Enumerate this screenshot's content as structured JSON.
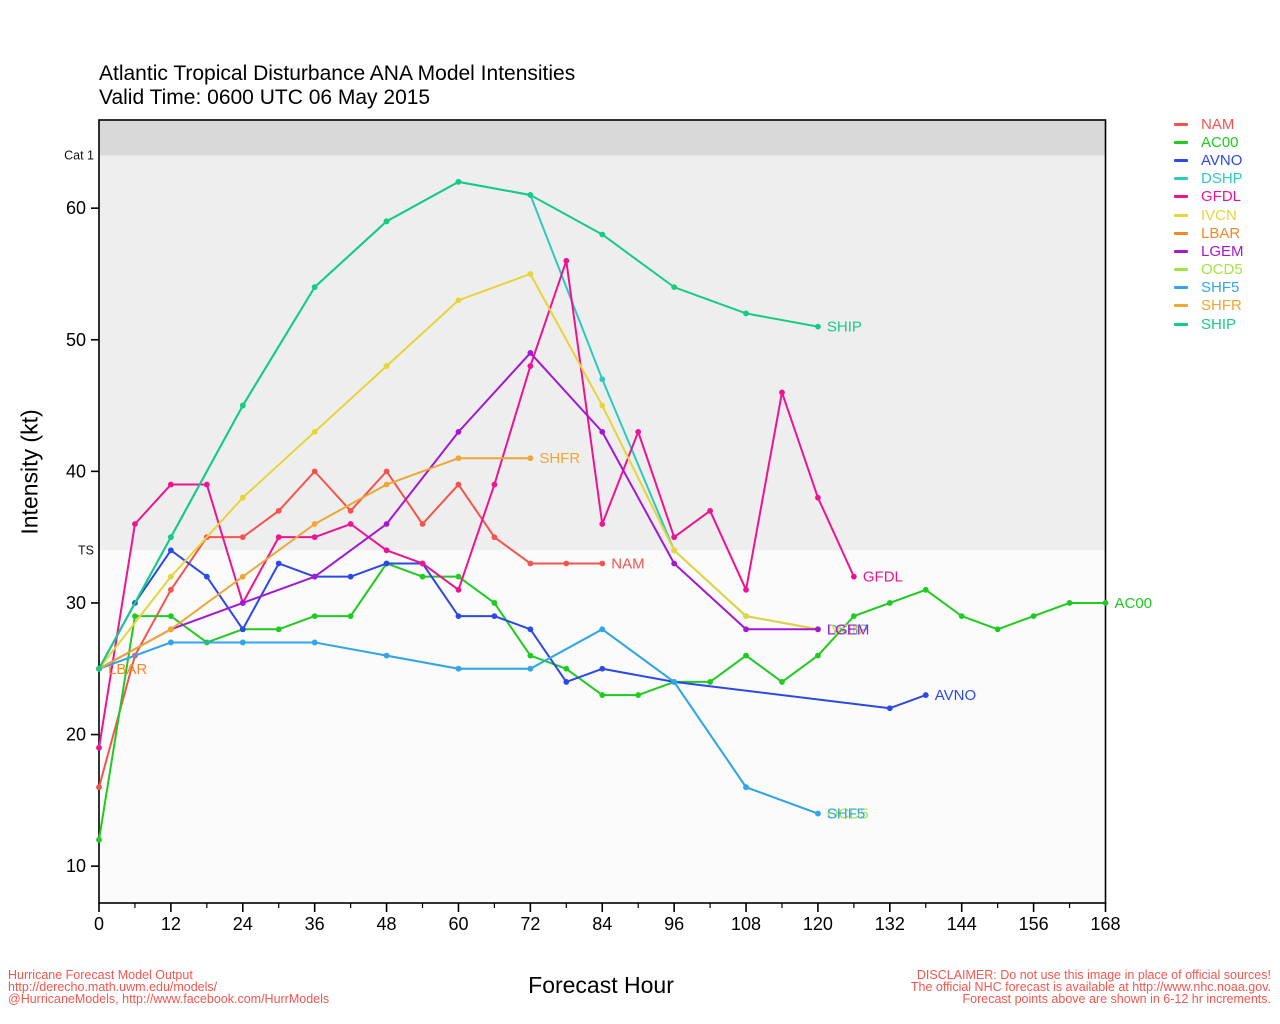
{
  "chart_data": {
    "type": "line",
    "title": "Atlantic Tropical Disturbance ANA Model Intensities",
    "subtitle": "Valid Time: 0600 UTC 06 May 2015",
    "xlabel": "Forecast Hour",
    "ylabel": "Intensity (kt)",
    "xlim": [
      0,
      168
    ],
    "ylim": [
      7.2,
      66.7
    ],
    "x_ticks": [
      0,
      12,
      24,
      36,
      48,
      60,
      72,
      84,
      96,
      108,
      120,
      132,
      144,
      156,
      168
    ],
    "x_minor_step": 6,
    "y_ticks": [
      10,
      20,
      30,
      40,
      50,
      60
    ],
    "grid": false,
    "legend_position": "right-outside",
    "thresholds": [
      {
        "label": "TS",
        "value": 34
      },
      {
        "label": "Cat 1",
        "value": 64
      }
    ],
    "bands": [
      {
        "from": 64,
        "to": 66.7,
        "color": "#d9d9d9"
      },
      {
        "from": 34,
        "to": 64,
        "color": "#eeeeee"
      },
      {
        "from": 7.2,
        "to": 34,
        "color": "#fbfbfb"
      }
    ],
    "series": [
      {
        "name": "NAM",
        "color": "#f4534e",
        "label_at": [
          84,
          33
        ],
        "points": [
          [
            0,
            16
          ],
          [
            6,
            26
          ],
          [
            12,
            31
          ],
          [
            18,
            35
          ],
          [
            24,
            35
          ],
          [
            30,
            37
          ],
          [
            36,
            40
          ],
          [
            42,
            37
          ],
          [
            48,
            40
          ],
          [
            54,
            36
          ],
          [
            60,
            39
          ],
          [
            66,
            35
          ],
          [
            72,
            33
          ],
          [
            78,
            33
          ],
          [
            84,
            33
          ]
        ]
      },
      {
        "name": "AC00",
        "color": "#1ecb1e",
        "label_at": [
          168,
          30
        ],
        "points": [
          [
            0,
            12
          ],
          [
            6,
            29
          ],
          [
            12,
            29
          ],
          [
            18,
            27
          ],
          [
            24,
            28
          ],
          [
            30,
            28
          ],
          [
            36,
            29
          ],
          [
            42,
            29
          ],
          [
            48,
            33
          ],
          [
            54,
            32
          ],
          [
            60,
            32
          ],
          [
            66,
            30
          ],
          [
            72,
            26
          ],
          [
            78,
            25
          ],
          [
            84,
            23
          ],
          [
            90,
            23
          ],
          [
            96,
            24
          ],
          [
            102,
            24
          ],
          [
            108,
            26
          ],
          [
            114,
            24
          ],
          [
            120,
            26
          ],
          [
            126,
            29
          ],
          [
            132,
            30
          ],
          [
            138,
            31
          ],
          [
            144,
            29
          ],
          [
            150,
            28
          ],
          [
            156,
            29
          ],
          [
            162,
            30
          ],
          [
            168,
            30
          ]
        ]
      },
      {
        "name": "AVNO",
        "color": "#2c49e8",
        "label_at": [
          138,
          23
        ],
        "points": [
          [
            0,
            25
          ],
          [
            6,
            30
          ],
          [
            12,
            34
          ],
          [
            18,
            32
          ],
          [
            24,
            28
          ],
          [
            30,
            33
          ],
          [
            36,
            32
          ],
          [
            42,
            32
          ],
          [
            48,
            33
          ],
          [
            54,
            33
          ],
          [
            60,
            29
          ],
          [
            66,
            29
          ],
          [
            72,
            28
          ],
          [
            78,
            24
          ],
          [
            84,
            25
          ],
          [
            96,
            24
          ],
          [
            132,
            22
          ],
          [
            138,
            23
          ]
        ]
      },
      {
        "name": "DSHP",
        "color": "#2ec9c0",
        "label_at": [
          120,
          28
        ],
        "points": [
          [
            0,
            25
          ],
          [
            12,
            35
          ],
          [
            24,
            45
          ],
          [
            36,
            54
          ],
          [
            48,
            59
          ],
          [
            60,
            62
          ],
          [
            72,
            61
          ],
          [
            84,
            47
          ],
          [
            96,
            34
          ],
          [
            108,
            29
          ],
          [
            120,
            28
          ]
        ]
      },
      {
        "name": "GFDL",
        "color": "#ee1490",
        "label_at": [
          126,
          32
        ],
        "points": [
          [
            0,
            19
          ],
          [
            6,
            36
          ],
          [
            12,
            39
          ],
          [
            18,
            39
          ],
          [
            24,
            30
          ],
          [
            30,
            35
          ],
          [
            36,
            35
          ],
          [
            42,
            36
          ],
          [
            48,
            34
          ],
          [
            54,
            33
          ],
          [
            60,
            31
          ],
          [
            66,
            39
          ],
          [
            72,
            48
          ],
          [
            78,
            56
          ],
          [
            84,
            36
          ],
          [
            90,
            43
          ],
          [
            96,
            35
          ],
          [
            102,
            37
          ],
          [
            108,
            31
          ],
          [
            114,
            46
          ],
          [
            120,
            38
          ],
          [
            126,
            32
          ]
        ]
      },
      {
        "name": "IVCN",
        "color": "#e7d43a",
        "label_at": [
          120,
          28
        ],
        "points": [
          [
            0,
            25
          ],
          [
            12,
            32
          ],
          [
            24,
            38
          ],
          [
            36,
            43
          ],
          [
            48,
            48
          ],
          [
            60,
            53
          ],
          [
            72,
            55
          ],
          [
            84,
            45
          ],
          [
            96,
            34
          ],
          [
            108,
            29
          ],
          [
            120,
            28
          ]
        ]
      },
      {
        "name": "LBAR",
        "color": "#f5872b",
        "label_at": [
          0,
          25
        ],
        "points": [
          [
            0,
            25
          ]
        ]
      },
      {
        "name": "LGEM",
        "color": "#a418d2",
        "label_at": [
          120,
          28
        ],
        "points": [
          [
            0,
            25
          ],
          [
            12,
            28
          ],
          [
            24,
            30
          ],
          [
            36,
            32
          ],
          [
            48,
            36
          ],
          [
            60,
            43
          ],
          [
            72,
            49
          ],
          [
            84,
            43
          ],
          [
            96,
            33
          ],
          [
            108,
            28
          ],
          [
            120,
            28
          ]
        ]
      },
      {
        "name": "OCD5",
        "color": "#a2e53e",
        "label_at": [
          120,
          14
        ],
        "points": [
          [
            0,
            25
          ],
          [
            12,
            27
          ],
          [
            24,
            27
          ],
          [
            36,
            27
          ],
          [
            48,
            26
          ],
          [
            60,
            25
          ],
          [
            72,
            25
          ],
          [
            84,
            28
          ],
          [
            96,
            24
          ],
          [
            108,
            16
          ],
          [
            120,
            14
          ]
        ]
      },
      {
        "name": "SHF5",
        "color": "#31a4f2",
        "label_at": [
          120,
          14
        ],
        "points": [
          [
            0,
            25
          ],
          [
            12,
            27
          ],
          [
            24,
            27
          ],
          [
            36,
            27
          ],
          [
            48,
            26
          ],
          [
            60,
            25
          ],
          [
            72,
            25
          ],
          [
            84,
            28
          ],
          [
            96,
            24
          ],
          [
            108,
            16
          ],
          [
            120,
            14
          ]
        ]
      },
      {
        "name": "SHFR",
        "color": "#eda735",
        "label_at": [
          72,
          41
        ],
        "points": [
          [
            0,
            25
          ],
          [
            12,
            28
          ],
          [
            24,
            32
          ],
          [
            36,
            36
          ],
          [
            48,
            39
          ],
          [
            60,
            41
          ],
          [
            72,
            41
          ]
        ]
      },
      {
        "name": "SHIP",
        "color": "#15cc86",
        "label_at": [
          120,
          51
        ],
        "points": [
          [
            0,
            25
          ],
          [
            12,
            35
          ],
          [
            24,
            45
          ],
          [
            36,
            54
          ],
          [
            48,
            59
          ],
          [
            60,
            62
          ],
          [
            72,
            61
          ],
          [
            84,
            58
          ],
          [
            96,
            54
          ],
          [
            108,
            52
          ],
          [
            120,
            51
          ]
        ]
      }
    ]
  },
  "footer": {
    "line1": "Hurricane Forecast Model Output",
    "line2": "http://derecho.math.uwm.edu/models/",
    "line3": "@HurricaneModels, http://www.facebook.com/HurrModels"
  },
  "disclaimer": {
    "line1": "DISCLAIMER: Do not use this image in place of official sources!",
    "line2": "The official NHC forecast is available at http://www.nhc.noaa.gov.",
    "line3": "Forecast points above are shown in 6-12 hr increments."
  },
  "colors": {
    "annotation_red": "#f2564f",
    "axis_black": "#000000"
  }
}
